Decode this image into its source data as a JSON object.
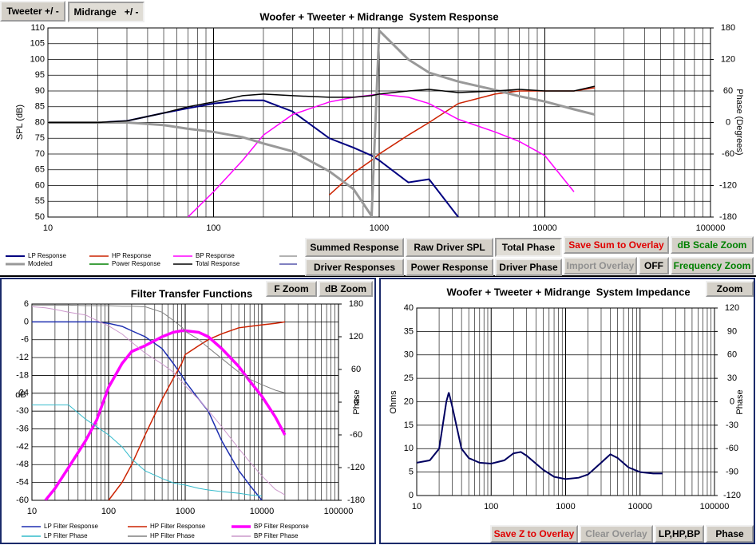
{
  "buttons": [
    "Tweeter +/ -",
    "Midrange   +/ -",
    "Summed Response",
    "Raw Driver SPL",
    "Total Phase",
    "Save Sum to Overlay",
    "dB Scale Zoom",
    "Driver Responses",
    "Power Response",
    "Driver Phase",
    "Import Overlay",
    "OFF",
    "Frequency Zoom",
    "F Zoom",
    "dB Zoom",
    "Zoom",
    "Save Z to Overlay",
    "Clear Overlay",
    "LP,HP,BP",
    "Phase"
  ],
  "chart_data": [
    {
      "type": "line",
      "title": "Woofer + Tweeter + Midrange  System Response",
      "ylabel": "SPL (dB)",
      "y2label": "Phase (Degrees)",
      "xscale": "log",
      "grid": true,
      "xlim": [
        10,
        100000
      ],
      "xticks": [
        10,
        100,
        1000,
        10000,
        100000
      ],
      "ylim": [
        50,
        110
      ],
      "yticks": [
        50,
        55,
        60,
        65,
        70,
        75,
        80,
        85,
        90,
        95,
        100,
        105,
        110
      ],
      "y2lim": [
        -180,
        180
      ],
      "y2ticks": [
        -180,
        -120,
        -60,
        0,
        60,
        120,
        180
      ],
      "x": [
        10,
        15,
        20,
        30,
        50,
        70,
        100,
        150,
        200,
        300,
        500,
        700,
        900,
        1000,
        1500,
        2000,
        3000,
        5000,
        7000,
        10000,
        15000,
        20000
      ],
      "series": [
        {
          "name": "LP Response",
          "color": "#000080",
          "values": [
            80,
            80,
            80,
            80.5,
            83,
            84.5,
            86,
            87,
            87,
            83.5,
            75,
            72,
            69.5,
            68,
            61,
            62,
            50,
            null,
            null,
            null,
            null,
            null
          ]
        },
        {
          "name": "HP Response",
          "color": "#cc2200",
          "values": [
            null,
            null,
            null,
            null,
            null,
            null,
            null,
            null,
            null,
            null,
            57,
            64,
            68,
            70,
            76,
            80,
            86,
            89,
            90,
            90,
            90,
            91
          ]
        },
        {
          "name": "BP Response",
          "color": "#ff00ff",
          "values": [
            null,
            null,
            null,
            null,
            null,
            50,
            58,
            68,
            76,
            82.5,
            86.5,
            88,
            88.7,
            89,
            88,
            86,
            81,
            77,
            74,
            69.5,
            58,
            null
          ]
        },
        {
          "name": "Modeled",
          "color": "#999999",
          "axis": "y2",
          "values": [
            0,
            0,
            0,
            0,
            -5,
            -12,
            -18,
            -28,
            -40,
            -55,
            -93,
            -127,
            -178,
            175,
            120,
            95,
            78,
            62,
            50,
            40,
            25,
            15
          ]
        },
        {
          "name": "Power Response",
          "color": "#008000",
          "values": [
            null,
            null,
            null,
            null,
            null,
            null,
            null,
            null,
            null,
            null,
            null,
            null,
            null,
            null,
            null,
            null,
            null,
            null,
            null,
            null,
            null,
            null
          ]
        },
        {
          "name": "Total Response",
          "color": "#000000",
          "values": [
            80,
            80,
            80,
            80.5,
            83,
            85,
            86.5,
            88.5,
            89,
            88.5,
            88,
            88,
            88.5,
            89,
            90,
            90.5,
            89.5,
            90,
            90.5,
            90,
            90,
            91.5
          ]
        }
      ]
    },
    {
      "type": "line",
      "title": "Filter Transfer Functions",
      "ylabel": "dB",
      "y2label": "Phase",
      "xscale": "log",
      "grid": true,
      "xlim": [
        10,
        100000
      ],
      "xticks": [
        10,
        100,
        1000,
        10000,
        100000
      ],
      "ylim": [
        -60,
        6
      ],
      "yticks": [
        -60,
        -54,
        -48,
        -42,
        -36,
        -30,
        -24,
        -18,
        -12,
        -6,
        0,
        6
      ],
      "y2lim": [
        -180,
        180
      ],
      "y2ticks": [
        -180,
        -120,
        -60,
        0,
        60,
        120,
        180
      ],
      "x": [
        10,
        15,
        20,
        30,
        50,
        70,
        100,
        150,
        200,
        300,
        500,
        700,
        900,
        1000,
        1500,
        2000,
        3000,
        5000,
        7000,
        10000,
        15000,
        20000
      ],
      "series": [
        {
          "name": "LP Filter Response",
          "color": "#1e2fb0",
          "values": [
            0,
            0,
            0,
            0,
            0,
            0,
            -0.5,
            -1.5,
            -3,
            -5,
            -9,
            -14,
            -18,
            -20,
            -26,
            -30,
            -40,
            -50,
            -55,
            -60,
            null,
            null
          ]
        },
        {
          "name": "HP Filter Response",
          "color": "#cc2200",
          "values": [
            null,
            null,
            null,
            null,
            null,
            null,
            -60,
            -54,
            -48,
            -38,
            -26,
            -19,
            -14,
            -11,
            -8,
            -6,
            -4,
            -2,
            -1.5,
            -1,
            -0.5,
            0
          ]
        },
        {
          "name": "BP Filter Response",
          "color": "#ff00ff",
          "values": [
            null,
            -60,
            -56,
            -49,
            -40,
            -33,
            -22,
            -14,
            -10,
            -8,
            -5,
            -3.5,
            -3,
            -3,
            -3.5,
            -5,
            -9,
            -15,
            -20,
            -25,
            -32,
            -38
          ]
        },
        {
          "name": "LP Filter Phase",
          "color": "#33bbcc",
          "axis": "y2",
          "values": [
            -5,
            -5,
            -5,
            -5,
            -31,
            -45,
            -60,
            -82,
            -104,
            -126,
            -140,
            -148,
            -151,
            -152,
            -158,
            -161,
            -164,
            -167,
            -170,
            -172,
            null,
            null
          ]
        },
        {
          "name": "HP Filter Phase",
          "color": "#808080",
          "axis": "y2",
          "values": [
            178,
            178,
            178,
            178,
            177,
            177,
            177,
            176,
            176,
            175,
            165,
            150,
            138,
            130,
            115,
            100,
            80,
            55,
            42,
            32,
            22,
            17
          ]
        },
        {
          "name": "BP Filter Phase",
          "color": "#cc99cc",
          "axis": "y2",
          "values": [
            175,
            173,
            170,
            165,
            160,
            150,
            140,
            125,
            110,
            90,
            70,
            55,
            38,
            30,
            5,
            -15,
            -45,
            -85,
            -110,
            -135,
            -160,
            -170
          ]
        }
      ]
    },
    {
      "type": "line",
      "title": "Woofer + Tweeter + Midrange  System Impedance",
      "ylabel": "Ohms",
      "y2label": "Phase",
      "xscale": "log",
      "grid": true,
      "xlim": [
        10,
        100000
      ],
      "xticks": [
        10,
        100,
        1000,
        10000,
        100000
      ],
      "ylim": [
        0,
        40
      ],
      "yticks": [
        0,
        5,
        10,
        15,
        20,
        25,
        30,
        35,
        40
      ],
      "y2lim": [
        -120,
        120
      ],
      "y2ticks": [
        -120,
        -90,
        -60,
        -30,
        0,
        30,
        60,
        90,
        120
      ],
      "x": [
        10,
        15,
        20,
        25,
        27,
        30,
        40,
        50,
        70,
        100,
        150,
        200,
        250,
        300,
        500,
        700,
        1000,
        1500,
        2000,
        3000,
        4000,
        5000,
        7000,
        10000,
        15000,
        20000
      ],
      "series": [
        {
          "color": "#000060",
          "values": [
            7,
            7.5,
            10,
            20,
            22,
            19,
            10,
            8,
            7,
            6.8,
            7.5,
            9,
            9.3,
            8.5,
            5.5,
            4,
            3.5,
            3.8,
            4.5,
            7,
            8.8,
            8,
            6,
            5,
            4.7,
            4.7
          ]
        }
      ]
    }
  ]
}
